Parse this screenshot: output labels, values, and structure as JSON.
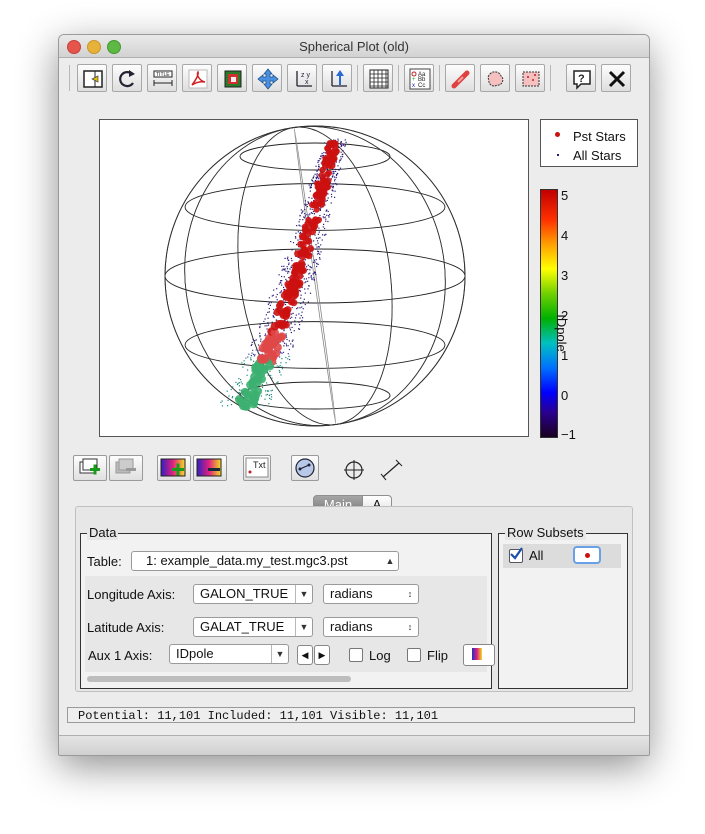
{
  "window": {
    "title": "Spherical Plot (old)"
  },
  "toolbar": {
    "buttons": [
      {
        "icon": "window-insert-icon"
      },
      {
        "icon": "replot-icon"
      },
      {
        "icon": "title-icon"
      },
      {
        "icon": "pdf-export-icon"
      },
      {
        "icon": "image-export-icon"
      },
      {
        "icon": "navigate-icon"
      },
      {
        "icon": "axes-icon"
      },
      {
        "icon": "rescale-icon"
      },
      {
        "icon": "grid-icon"
      },
      {
        "icon": "legend-icon"
      },
      {
        "icon": "subset-blob-icon"
      },
      {
        "icon": "draw-blob-icon"
      },
      {
        "icon": "select-points-icon"
      },
      {
        "icon": "help-icon"
      },
      {
        "icon": "close-icon"
      }
    ]
  },
  "legend": {
    "items": [
      {
        "label": "Pst Stars",
        "color": "#cc1111"
      },
      {
        "label": "All Stars",
        "color": "#2a1a7a"
      }
    ]
  },
  "colorbar": {
    "label": "IDpole",
    "ticks": [
      "5",
      "4",
      "3",
      "2",
      "1",
      "0",
      "−1"
    ],
    "min": -1,
    "max": 5.2
  },
  "subtoolbar": {
    "txt_label": "Txt"
  },
  "tabs": {
    "main": "Main",
    "a": "A"
  },
  "data_panel": {
    "legend": "Data",
    "table_label": "Table:",
    "table_value": "1: example_data.my_test.mgc3.pst",
    "lon_label": "Longitude Axis:",
    "lon_value": "GALON_TRUE",
    "lon_unit": "radians",
    "lat_label": "Latitude Axis:",
    "lat_value": "GALAT_TRUE",
    "lat_unit": "radians",
    "aux_label": "Aux 1 Axis:",
    "aux_value": "IDpole",
    "log_label": "Log",
    "flip_label": "Flip"
  },
  "subsets": {
    "legend": "Row Subsets",
    "all_label": "All",
    "all_checked": true
  },
  "status": {
    "text": "Potential: 11,101 Included: 11,101 Visible: 11,101"
  },
  "colors": {
    "accent": "#3c78d8",
    "pst": "#cc1111",
    "all": "#2a1a7a"
  }
}
